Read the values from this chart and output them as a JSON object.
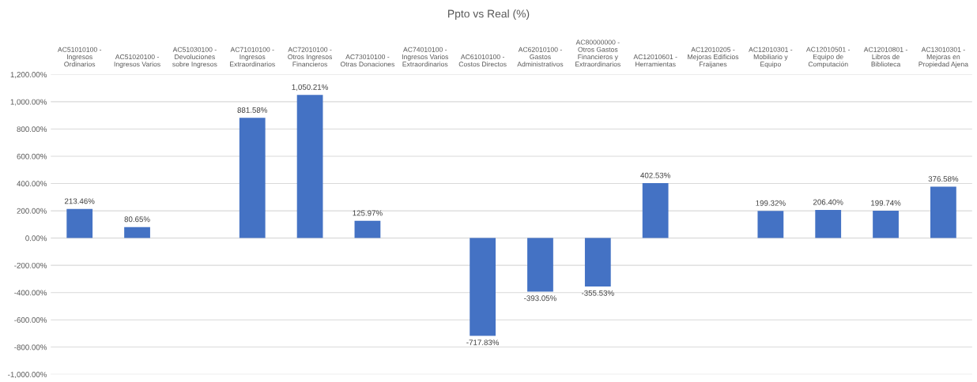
{
  "chart_data": {
    "type": "bar",
    "title": "Ppto vs Real (%)",
    "categories": [
      "AC51010100 -\nIngresos\nOrdinarios",
      "AC51020100 -\nIngresos Varios",
      "AC51030100 -\nDevoluciones\nsobre Ingresos",
      "AC71010100 -\nIngresos\nExtraordinarios",
      "AC72010100 -\nOtros Ingresos\nFinancieros",
      "AC73010100 -\nOtras Donaciones",
      "AC74010100 -\nIngresos Varios\nExtraordinarios",
      "AC61010100 -\nCostos Directos",
      "AC62010100 -\nGastos\nAdministrativos",
      "AC80000000 -\nOtros Gastos\nFinancieros y\nExtraordinarios",
      "AC12010601 -\nHerramientas",
      "AC12010205 -\nMejoras Edificios\nFraijanes",
      "AC12010301 -\nMobiliario y\nEquipo",
      "AC12010501 -\nEquipo de\nComputación",
      "AC12010801 -\nLibros de\nBiblioteca",
      "AC13010301 -\nMejoras en\nPropiedad Ajena"
    ],
    "values": [
      213.46,
      80.65,
      null,
      881.58,
      1050.21,
      125.97,
      null,
      -717.83,
      -393.05,
      -355.53,
      402.53,
      null,
      199.32,
      206.4,
      199.74,
      376.58
    ],
    "value_labels": [
      "213.46%",
      "80.65%",
      null,
      "881.58%",
      "1,050.21%",
      "125.97%",
      null,
      "-717.83%",
      "-393.05%",
      "-355.53%",
      "402.53%",
      null,
      "199.32%",
      "206.40%",
      "199.74%",
      "376.58%"
    ],
    "color": "#4472c4",
    "ylim": [
      -1000,
      1200
    ],
    "yticks": [
      {
        "value": -1000,
        "label": "-1,000.00%"
      },
      {
        "value": -800,
        "label": "-800.00%"
      },
      {
        "value": -600,
        "label": "-600.00%"
      },
      {
        "value": -400,
        "label": "-400.00%"
      },
      {
        "value": -200,
        "label": "-200.00%"
      },
      {
        "value": 0,
        "label": "0.00%"
      },
      {
        "value": 200,
        "label": "200.00%"
      },
      {
        "value": 400,
        "label": "400.00%"
      },
      {
        "value": 600,
        "label": "600.00%"
      },
      {
        "value": 800,
        "label": "800.00%"
      },
      {
        "value": 1000,
        "label": "1,000.00%"
      },
      {
        "value": 1200,
        "label": "1,200.00%"
      }
    ],
    "grid": "y"
  }
}
